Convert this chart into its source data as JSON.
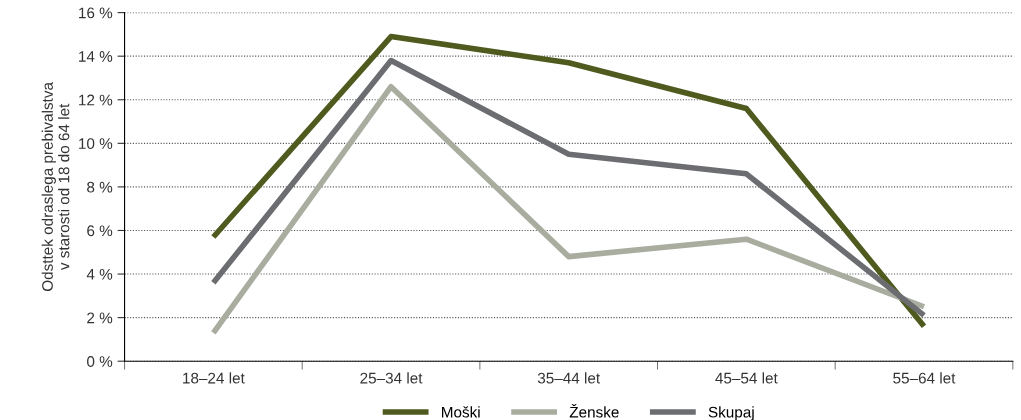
{
  "chart_data": {
    "type": "line",
    "ylabel": "Odsttek odraslega prebivalstva\nv starosti od 18 do 64 let",
    "categories": [
      "18–24 let",
      "25–34 let",
      "35–44 let",
      "45–54 let",
      "55–64 let"
    ],
    "series": [
      {
        "name": "Moški",
        "color": "#4f5a1e",
        "values": [
          5.7,
          14.9,
          13.7,
          11.6,
          1.6
        ]
      },
      {
        "name": "Ženske",
        "color": "#a8ada0",
        "values": [
          1.3,
          12.6,
          4.8,
          5.6,
          2.5
        ]
      },
      {
        "name": "Skupaj",
        "color": "#6b6d70",
        "values": [
          3.6,
          13.8,
          9.5,
          8.6,
          2.1
        ]
      }
    ],
    "ylim": [
      0,
      16
    ],
    "yticks": [
      {
        "value": 0,
        "label": "0 %"
      },
      {
        "value": 2,
        "label": "2 %"
      },
      {
        "value": 4,
        "label": "4 %"
      },
      {
        "value": 6,
        "label": "6 %"
      },
      {
        "value": 8,
        "label": "8 %"
      },
      {
        "value": 10,
        "label": "10 %"
      },
      {
        "value": 12,
        "label": "12 %"
      },
      {
        "value": 14,
        "label": "14 %"
      },
      {
        "value": 16,
        "label": "16 %"
      }
    ],
    "grid": "y",
    "legend": "bottom",
    "marker": "none",
    "line_style": "solid"
  }
}
